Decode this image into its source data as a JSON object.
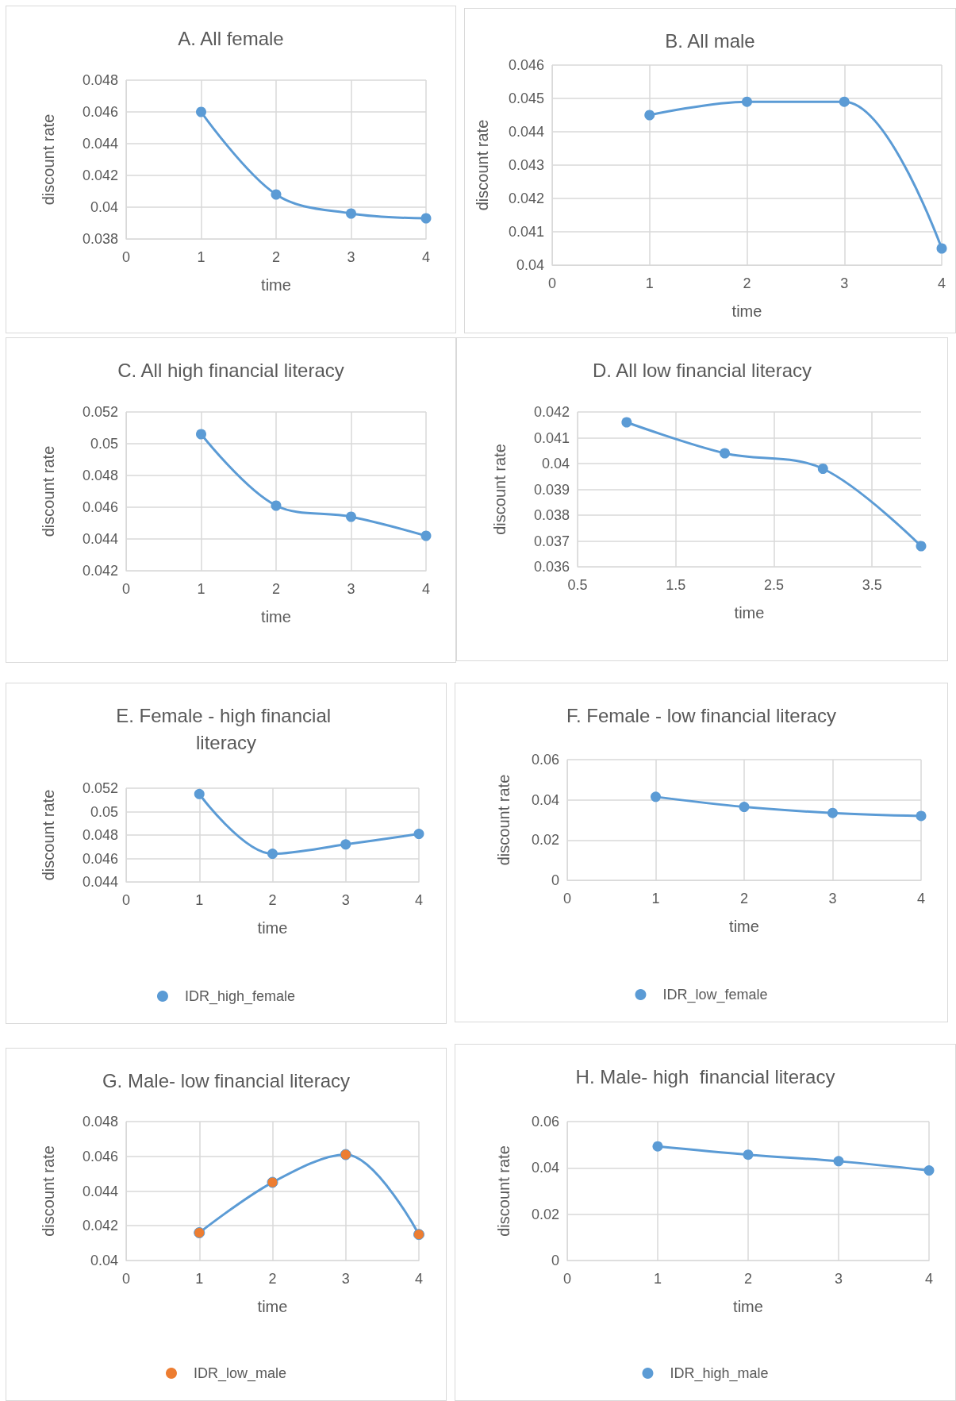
{
  "chart_data": [
    {
      "type": "line",
      "title": "A. All female",
      "xlabel": "time",
      "ylabel": "discount rate",
      "x": [
        1,
        2,
        3,
        4
      ],
      "series": [
        {
          "color": "#5b9bd5",
          "values": [
            0.046,
            0.0408,
            0.0396,
            0.0393
          ]
        }
      ],
      "xlim": [
        0,
        4
      ],
      "xticks": [
        0,
        1,
        2,
        3,
        4
      ],
      "ylim": [
        0.038,
        0.048
      ],
      "yticks": [
        0.038,
        0.04,
        0.042,
        0.044,
        0.046,
        0.048
      ],
      "grid": true,
      "marker": "circle",
      "line_style": "solid"
    },
    {
      "type": "line",
      "title": "B. All male",
      "xlabel": "time",
      "ylabel": "discount rate",
      "x": [
        1,
        2,
        3,
        4
      ],
      "series": [
        {
          "color": "#5b9bd5",
          "values": [
            0.0445,
            0.0449,
            0.0449,
            0.0405
          ]
        }
      ],
      "xlim": [
        0,
        4
      ],
      "xticks": [
        0,
        1,
        2,
        3,
        4
      ],
      "ylim": [
        0.04,
        0.046
      ],
      "yticks": [
        0.04,
        0.041,
        0.042,
        0.043,
        0.044,
        0.045,
        0.046
      ],
      "grid": true,
      "marker": "circle",
      "line_style": "solid"
    },
    {
      "type": "line",
      "title": "C. All high financial literacy",
      "xlabel": "time",
      "ylabel": "discount rate",
      "x": [
        1,
        2,
        3,
        4
      ],
      "series": [
        {
          "color": "#5b9bd5",
          "values": [
            0.0506,
            0.0461,
            0.0454,
            0.0442
          ]
        }
      ],
      "xlim": [
        0,
        4
      ],
      "xticks": [
        0,
        1,
        2,
        3,
        4
      ],
      "ylim": [
        0.042,
        0.052
      ],
      "yticks": [
        0.042,
        0.044,
        0.046,
        0.048,
        0.05,
        0.052
      ],
      "grid": true,
      "marker": "circle",
      "line_style": "solid"
    },
    {
      "type": "line",
      "title": "D. All low financial literacy",
      "xlabel": "time",
      "ylabel": "discount rate",
      "x": [
        1,
        2,
        3,
        4
      ],
      "series": [
        {
          "color": "#5b9bd5",
          "values": [
            0.0416,
            0.0404,
            0.0398,
            0.0368
          ]
        }
      ],
      "xlim": [
        0.5,
        4
      ],
      "xticks": [
        0.5,
        1.5,
        2.5,
        3.5
      ],
      "ylim": [
        0.036,
        0.042
      ],
      "yticks": [
        0.036,
        0.037,
        0.038,
        0.039,
        0.04,
        0.041,
        0.042
      ],
      "grid": true,
      "marker": "circle",
      "line_style": "solid"
    },
    {
      "type": "line",
      "title": "E. Female - high financial literacy",
      "xlabel": "time",
      "ylabel": "discount rate",
      "x": [
        1,
        2,
        3,
        4
      ],
      "series": [
        {
          "name": "IDR_high_female",
          "color": "#5b9bd5",
          "values": [
            0.0515,
            0.0464,
            0.0472,
            0.0481
          ]
        }
      ],
      "xlim": [
        0,
        4
      ],
      "xticks": [
        0,
        1,
        2,
        3,
        4
      ],
      "ylim": [
        0.044,
        0.052
      ],
      "yticks": [
        0.044,
        0.046,
        0.048,
        0.05,
        0.052
      ],
      "grid": true,
      "legend": "bottom",
      "marker": "circle",
      "line_style": "solid"
    },
    {
      "type": "line",
      "title": "F. Female - low financial literacy",
      "xlabel": "time",
      "ylabel": "discount rate",
      "x": [
        1,
        2,
        3,
        4
      ],
      "series": [
        {
          "name": "IDR_low_female",
          "color": "#5b9bd5",
          "values": [
            0.0415,
            0.0365,
            0.0335,
            0.032
          ]
        }
      ],
      "xlim": [
        0,
        4
      ],
      "xticks": [
        0,
        1,
        2,
        3,
        4
      ],
      "ylim": [
        0,
        0.06
      ],
      "yticks": [
        0,
        0.02,
        0.04,
        0.06
      ],
      "grid": true,
      "legend": "bottom",
      "marker": "circle",
      "line_style": "solid"
    },
    {
      "type": "line",
      "title": "G. Male- low financial literacy",
      "xlabel": "time",
      "ylabel": "discount rate",
      "x": [
        1,
        2,
        3,
        4
      ],
      "series": [
        {
          "name": "IDR_low_male",
          "color": "#5b9bd5",
          "colors": [
            "#ed7d31",
            "#ed7d31",
            "#ed7d31",
            "#ed7d31"
          ],
          "values": [
            0.0416,
            0.0445,
            0.0461,
            0.0415
          ]
        }
      ],
      "xlim": [
        0,
        4
      ],
      "xticks": [
        0,
        1,
        2,
        3,
        4
      ],
      "ylim": [
        0.04,
        0.048
      ],
      "yticks": [
        0.04,
        0.042,
        0.044,
        0.046,
        0.048
      ],
      "grid": true,
      "legend": "bottom",
      "marker": "circle",
      "line_style": "solid"
    },
    {
      "type": "line",
      "title": "H. Male- high  financial literacy",
      "xlabel": "time",
      "ylabel": "discount rate",
      "x": [
        1,
        2,
        3,
        4
      ],
      "series": [
        {
          "name": "IDR_high_male",
          "color": "#5b9bd5",
          "values": [
            0.0493,
            0.0457,
            0.0429,
            0.0389
          ]
        }
      ],
      "xlim": [
        0,
        4
      ],
      "xticks": [
        0,
        1,
        2,
        3,
        4
      ],
      "ylim": [
        0,
        0.06
      ],
      "yticks": [
        0,
        0.02,
        0.04,
        0.06
      ],
      "grid": true,
      "legend": "bottom",
      "marker": "circle",
      "line_style": "solid"
    }
  ]
}
